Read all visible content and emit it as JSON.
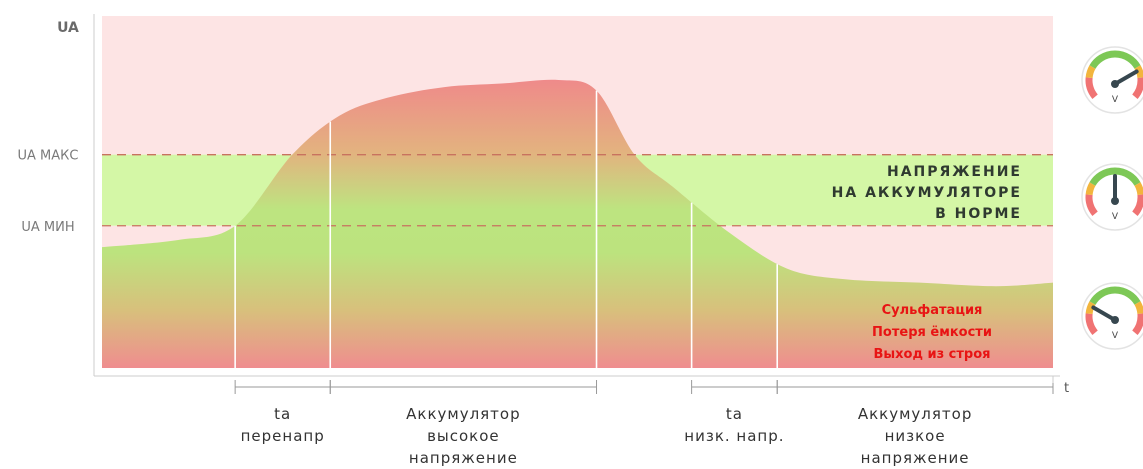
{
  "chart_data": {
    "type": "area",
    "title": "",
    "xlabel": "t",
    "ylabel": "UA",
    "y_axis_label": "UA",
    "x_axis_label": "t",
    "threshold_lines": [
      {
        "label": "UA МАКС",
        "value": 2
      },
      {
        "label": "UA МИН",
        "value": 1
      }
    ],
    "ylim": [
      -1.0,
      3.95
    ],
    "xlim": [
      0,
      100
    ],
    "series": [
      {
        "x": [
          0,
          8,
          14,
          20,
          25,
          30,
          36,
          42,
          48,
          52,
          56,
          60,
          66,
          72,
          78,
          86,
          94,
          100
        ],
        "y": [
          0.7,
          0.8,
          1.0,
          2.0,
          2.55,
          2.8,
          2.95,
          3.0,
          3.05,
          2.9,
          2.0,
          1.55,
          0.9,
          0.4,
          0.25,
          0.2,
          0.15,
          0.2
        ]
      }
    ],
    "zones": [
      {
        "name": "overvoltage",
        "from": 2,
        "to": 3.95,
        "color": "#fde4e4"
      },
      {
        "name": "normal",
        "from": 1,
        "to": 2,
        "color": "#d4f7a6"
      },
      {
        "name": "low",
        "from": -1.0,
        "to": 1,
        "color": "#fde4e4"
      }
    ],
    "markers": [
      14,
      24,
      52,
      62,
      71
    ],
    "intervals": [
      {
        "from": 14,
        "to": 24,
        "label_lines": [
          "ta",
          "перенапр"
        ]
      },
      {
        "from": 24,
        "to": 52,
        "label_lines": [
          "Аккумулятор",
          "высокое",
          "напряжение"
        ]
      },
      {
        "from": 62,
        "to": 71,
        "label_lines": [
          "ta",
          "низк. напр."
        ]
      },
      {
        "from": 71,
        "to": 100,
        "label_lines": [
          "Аккумулятор",
          "низкое",
          "напряжение"
        ]
      }
    ],
    "annotations": {
      "normal_lines": [
        "НАПРЯЖЕНИЕ",
        "НА АККУМУЛЯТОРЕ",
        "В НОРМЕ"
      ],
      "warning_lines": [
        "Сульфатация",
        "Потеря ёмкости",
        "Выход из строя"
      ]
    },
    "gauges": [
      {
        "name": "high",
        "needle_deg": 60,
        "unit": "V"
      },
      {
        "name": "normal",
        "needle_deg": 0,
        "unit": "V"
      },
      {
        "name": "low",
        "needle_deg": -60,
        "unit": "V"
      }
    ],
    "colors": {
      "curve_top": "#ef8a8a",
      "curve_bottom": "#b8e27a",
      "threshold": "#c8725f",
      "marker": "#ffffff",
      "axis": "#cccccc",
      "warning": "#e81414"
    }
  }
}
